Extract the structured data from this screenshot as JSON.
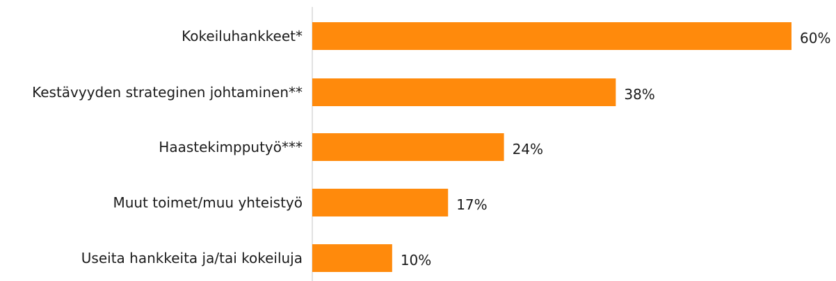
{
  "chart_data": {
    "type": "bar",
    "orientation": "horizontal",
    "categories": [
      "Kokeiluhankkeet*",
      "Kestävyyden strateginen johtaminen**",
      "Haastekimpputyö***",
      "Muut toimet/muu yhteistyö",
      "Useita hankkeita ja/tai kokeiluja"
    ],
    "values": [
      60,
      38,
      24,
      17,
      10
    ],
    "value_labels": [
      "60%",
      "38%",
      "24%",
      "17%",
      "10%"
    ],
    "xlim": [
      0,
      60
    ],
    "grid": false,
    "legend": "none",
    "colors": {
      "bar": "#FF8A0C",
      "axis": "#d9d9d9",
      "text": "#1a1a1a"
    }
  }
}
